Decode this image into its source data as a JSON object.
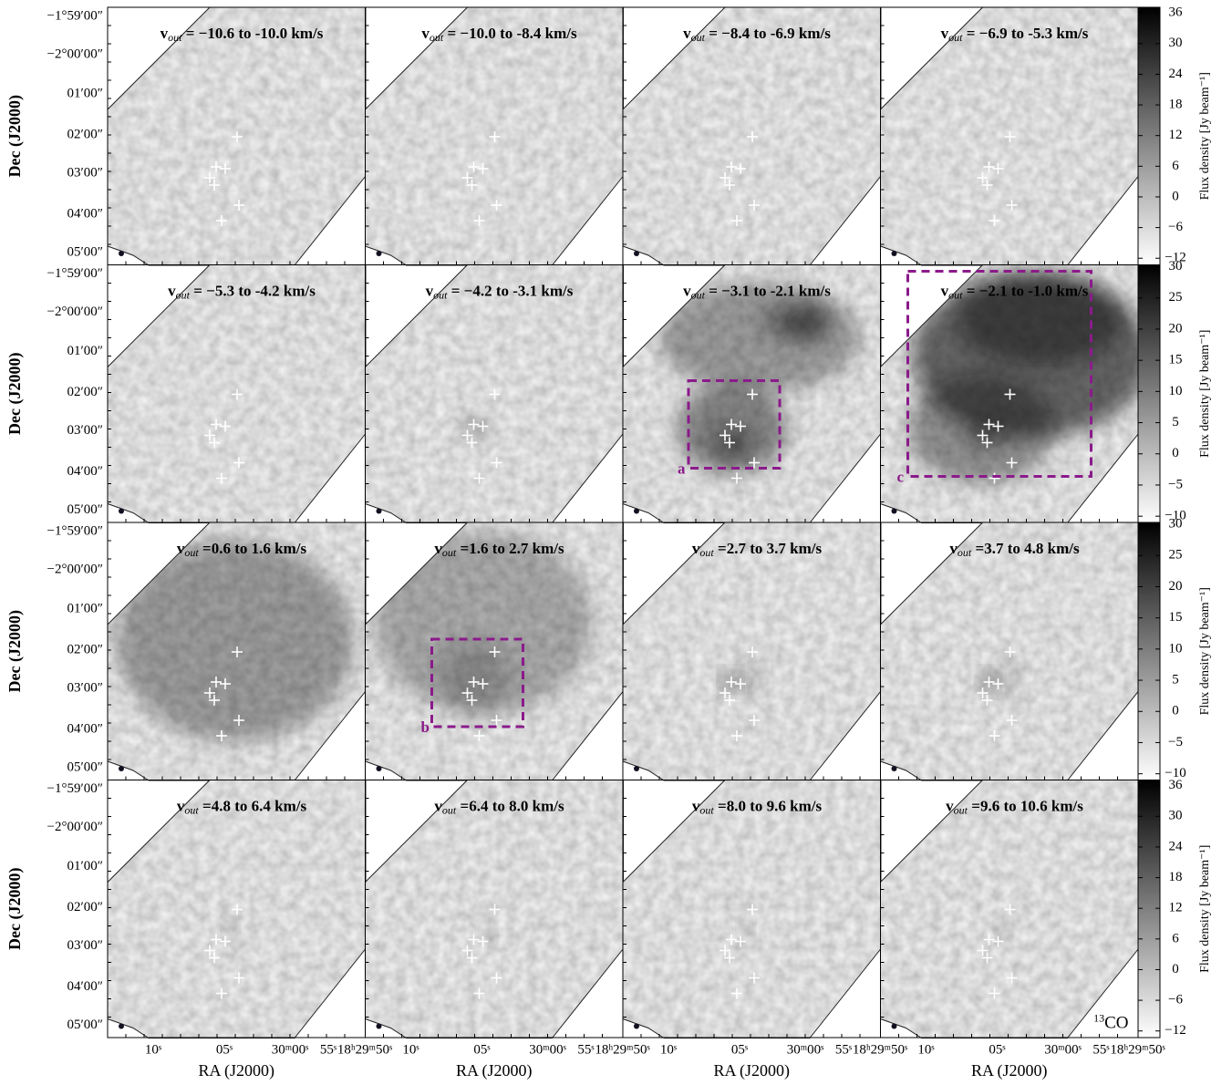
{
  "figure": {
    "y_label": "Dec (J2000)",
    "x_label": "RA (J2000)",
    "colorbar_label": "Flux density [Jy beam⁻¹]",
    "dec_ticks": [
      "−1°59′00″",
      "−2°00′00″",
      "01′00″",
      "02′00″",
      "03′00″",
      "04′00″",
      "05′00″"
    ],
    "ra_ticks": [
      "10ˢ",
      "05ˢ",
      "30ᵐ00ˢ",
      "55ˢ",
      "18ʰ29ᵐ50ˢ"
    ],
    "panels": [
      {
        "title": [
          "v",
          "out",
          " = −10.6 to -10.0 km/s"
        ]
      },
      {
        "title": [
          "v",
          "out",
          " = −10.0 to -8.4 km/s"
        ]
      },
      {
        "title": [
          "v",
          "out",
          " = −8.4 to -6.9 km/s"
        ]
      },
      {
        "title": [
          "v",
          "out",
          " = −6.9 to -5.3 km/s"
        ]
      },
      {
        "title": [
          "v",
          "out",
          " = −5.3 to -4.2 km/s"
        ]
      },
      {
        "title": [
          "v",
          "out",
          " = −4.2 to -3.1 km/s"
        ]
      },
      {
        "title": [
          "v",
          "out",
          " = −3.1 to -2.1 km/s"
        ]
      },
      {
        "title": [
          "v",
          "out",
          " = −2.1 to -1.0 km/s"
        ]
      },
      {
        "title": [
          "v",
          "out",
          " =0.6 to 1.6 km/s"
        ]
      },
      {
        "title": [
          "v",
          "out",
          " =1.6 to 2.7 km/s"
        ]
      },
      {
        "title": [
          "v",
          "out",
          " =2.7 to 3.7 km/s"
        ]
      },
      {
        "title": [
          "v",
          "out",
          " =3.7 to 4.8 km/s"
        ]
      },
      {
        "title": [
          "v",
          "out",
          " =4.8 to 6.4 km/s"
        ]
      },
      {
        "title": [
          "v",
          "out",
          " =6.4 to 8.0 km/s"
        ]
      },
      {
        "title": [
          "v",
          "out",
          " =8.0 to 9.6 km/s"
        ]
      },
      {
        "title": [
          "v",
          "out",
          " =9.6 to 10.6 km/s"
        ]
      }
    ],
    "boxes": [
      {
        "label": "a"
      },
      {
        "label": "c"
      },
      {
        "label": "b"
      }
    ],
    "line_label": {
      "sup": "13",
      "text": "CO"
    },
    "colorbars": [
      {
        "lim": [
          -13.3,
          37.1
        ],
        "ticks": [
          36,
          30,
          24,
          18,
          12,
          6,
          0,
          {
            "value": -6,
            "label": "−6"
          },
          {
            "value": -12,
            "label": "−12"
          }
        ]
      },
      {
        "lim": [
          -11,
          30.3
        ],
        "ticks": [
          30,
          25,
          20,
          15,
          10,
          5,
          0,
          {
            "value": -5,
            "label": "−5"
          },
          {
            "value": -10,
            "label": "−10"
          }
        ]
      },
      {
        "lim": [
          -11,
          30.3
        ],
        "ticks": [
          30,
          25,
          20,
          15,
          10,
          5,
          0,
          {
            "value": -5,
            "label": "−5"
          },
          {
            "value": -10,
            "label": "−10"
          }
        ]
      },
      {
        "lim": [
          -13.3,
          37.1
        ],
        "ticks": [
          36,
          30,
          24,
          18,
          12,
          6,
          0,
          {
            "value": -6,
            "label": "−6"
          },
          {
            "value": -12,
            "label": "−12"
          }
        ]
      }
    ]
  }
}
